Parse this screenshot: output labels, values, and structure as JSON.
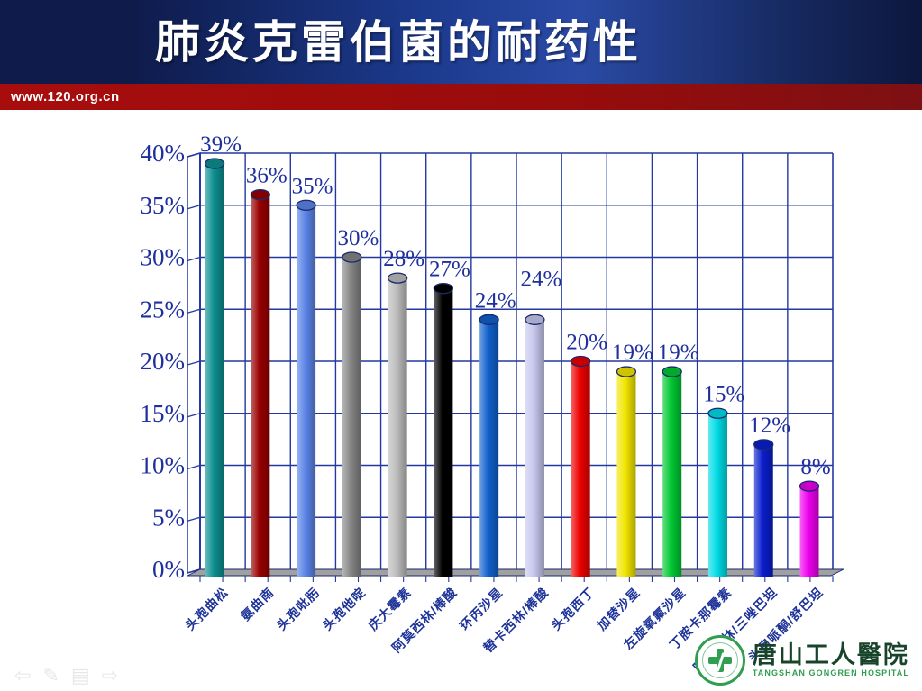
{
  "header": {
    "title": "肺炎克雷伯菌的耐药性",
    "url": "www.120.org.cn"
  },
  "chart_data": {
    "type": "bar",
    "title": "肺炎克雷伯菌的耐药性",
    "categories": [
      "头孢曲松",
      "氨曲南",
      "头孢吡肟",
      "头孢他啶",
      "庆大霉素",
      "阿莫西林/棒酸",
      "环丙沙星",
      "替卡西林/棒酸",
      "头孢西丁",
      "加替沙星",
      "左旋氧氟沙星",
      "丁胺卡那霉素",
      "哌拉西林/三唑巴坦",
      "头孢哌酮/舒巴坦"
    ],
    "values": [
      39,
      36,
      35,
      30,
      28,
      27,
      24,
      24,
      20,
      19,
      19,
      15,
      12,
      8
    ],
    "data_labels": [
      "39%",
      "36%",
      "35%",
      "30%",
      "28%",
      "27%",
      "24%",
      "24%",
      "20%",
      "19%",
      "19%",
      "15%",
      "12%",
      "8%"
    ],
    "bar_colors": [
      "#0d9090",
      "#990000",
      "#5c85e8",
      "#858585",
      "#bdbdbd",
      "#000000",
      "#1061cc",
      "#c7c7ee",
      "#ee0000",
      "#f2e500",
      "#00c832",
      "#00dce6",
      "#0a1ecd",
      "#ee00ee"
    ],
    "xlabel": "",
    "ylabel": "",
    "ylim": [
      0,
      40
    ],
    "ytick_step": 5,
    "ytick_labels": [
      "0%",
      "5%",
      "10%",
      "15%",
      "20%",
      "25%",
      "30%",
      "35%",
      "40%"
    ],
    "grid": true,
    "legend": false,
    "style": "3d-cylinder",
    "axis_text_color": "#1e2f9e",
    "gridline_color": "#2438a0",
    "floor_color": "#a0a0a0"
  },
  "nav": {
    "glyphs": [
      "⇦",
      "✎",
      "▤",
      "⇨"
    ]
  },
  "footer": {
    "hospital_cn": "唐山工人醫院",
    "hospital_en": "TANGSHAN GONGREN HOSPITAL"
  }
}
